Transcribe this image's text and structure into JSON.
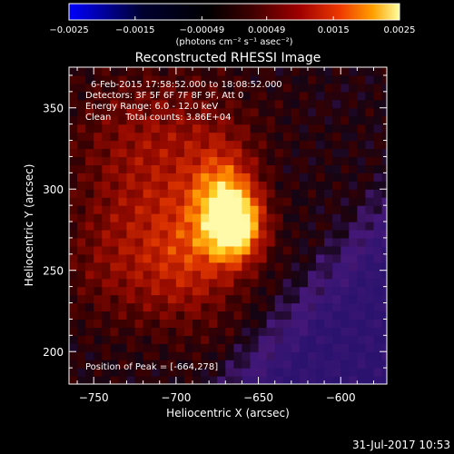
{
  "chart_data": {
    "type": "heatmap",
    "title": "Reconstructed RHESSI Image",
    "xlabel": "Heliocentric X (arcsec)",
    "ylabel": "Heliocentric Y (arcsec)",
    "xlim": [
      -765,
      -572
    ],
    "ylim": [
      180,
      375
    ],
    "xticks": [
      -750,
      -700,
      -650,
      -600
    ],
    "xtick_labels": [
      "−750",
      "−700",
      "−650",
      "−600"
    ],
    "yticks": [
      200,
      250,
      300,
      350
    ],
    "ytick_labels": [
      "200",
      "250",
      "300",
      "350"
    ],
    "annotations": [
      "6-Feb-2015 17:58:52.000 to 18:08:52.000",
      "Detectors: 3F 5F 6F 7F 8F 9F, Att 0",
      "Energy Range: 6.0 - 12.0 keV",
      "Clean     Total counts: 3.86E+04"
    ],
    "peak_label": "Position of Peak = [-664,278]",
    "peak": [
      -664,
      278
    ],
    "colorbar": {
      "vmin": -0.0025,
      "vmax": 0.0025,
      "tick_values": [
        -0.0025,
        -0.0015,
        -0.00049,
        0.00049,
        0.0015,
        0.0025
      ],
      "tick_labels": [
        "−0.0025",
        "−0.0015",
        "−0.00049",
        "0.00049",
        "0.0015",
        "0.0025"
      ],
      "units_label": "(photons cm⁻² s⁻¹ asec⁻²)",
      "colors": [
        "#0000ff",
        "#000010",
        "#000000",
        "#3c0000",
        "#a00000",
        "#ee3a00",
        "#ffa000",
        "#ffff90"
      ]
    },
    "image_colors": {
      "low": "#3a1a78",
      "mid": "#a02000",
      "high": "#fff090"
    },
    "footer_timestamp": "31-Jul-2017 10:53"
  }
}
